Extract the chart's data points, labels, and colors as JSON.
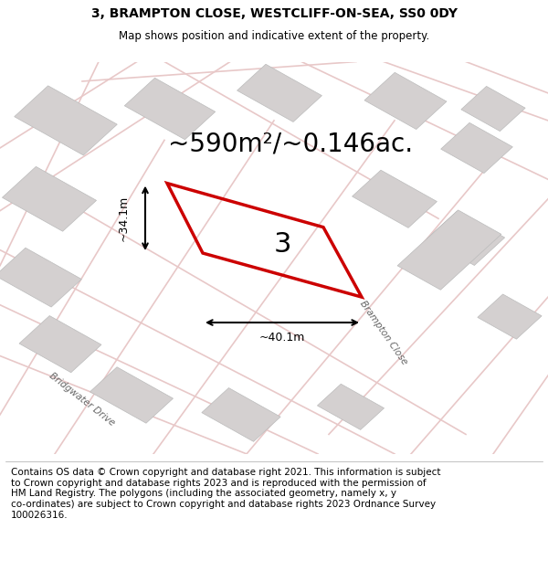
{
  "title_line1": "3, BRAMPTON CLOSE, WESTCLIFF-ON-SEA, SS0 0DY",
  "title_line2": "Map shows position and indicative extent of the property.",
  "area_text": "~590m²/~0.146ac.",
  "plot_label": "3",
  "dim_width": "~40.1m",
  "dim_height": "~34.1m",
  "road_label1": "Brampton Close",
  "road_label2": "Bridgwater Drive",
  "footer_wrapped": "Contains OS data © Crown copyright and database right 2021. This information is subject\nto Crown copyright and database rights 2023 and is reproduced with the permission of\nHM Land Registry. The polygons (including the associated geometry, namely x, y\nco-ordinates) are subject to Crown copyright and database rights 2023 Ordnance Survey\n100026316.",
  "map_bg": "#f0eeee",
  "road_color": "#e8c8c8",
  "plot_color": "#cc0000",
  "building_color": "#d4d0d0",
  "title_fontsize": 10,
  "subtitle_fontsize": 8.5,
  "area_fontsize": 20,
  "footer_fontsize": 7.5
}
